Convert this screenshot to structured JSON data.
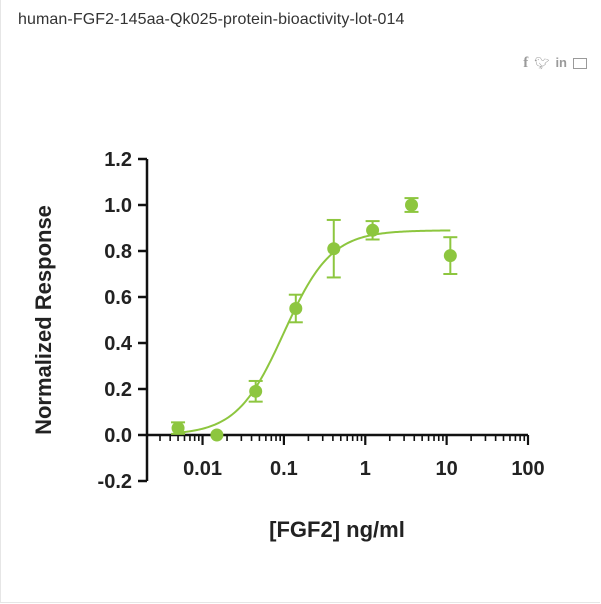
{
  "page": {
    "title": "human-FGF2-145aa-Qk025-protein-bioactivity-lot-014"
  },
  "share": {
    "facebook_icon": "facebook-icon",
    "twitter_icon": "twitter-icon",
    "linkedin_icon": "linkedin-icon",
    "email_icon": "email-icon",
    "glyph_color": "#9a9a9a"
  },
  "chart_data": {
    "type": "scatter",
    "xlabel": "[FGF2] ng/ml",
    "ylabel": "Normalized Response",
    "x_scale": "log",
    "xlim": [
      0.003,
      100
    ],
    "ylim": [
      -0.2,
      1.2
    ],
    "y_ticks": [
      -0.2,
      0.0,
      0.2,
      0.4,
      0.6,
      0.8,
      1.0,
      1.2
    ],
    "y_tick_labels": [
      "-0.2",
      "0.0",
      "0.2",
      "0.4",
      "0.6",
      "0.8",
      "1.0",
      "1.2"
    ],
    "x_ticks": [
      0.01,
      0.1,
      1,
      10,
      100
    ],
    "x_tick_labels": [
      "0.01",
      "0.1",
      "1",
      "10",
      "100"
    ],
    "grid": false,
    "color": "#8dc63f",
    "series": [
      {
        "points": [
          {
            "x": 0.005,
            "y": 0.03,
            "err": 0.025
          },
          {
            "x": 0.015,
            "y": 0.0,
            "err": 0.0
          },
          {
            "x": 0.045,
            "y": 0.19,
            "err": 0.045
          },
          {
            "x": 0.14,
            "y": 0.55,
            "err": 0.06
          },
          {
            "x": 0.41,
            "y": 0.81,
            "err": 0.125
          },
          {
            "x": 1.23,
            "y": 0.89,
            "err": 0.04
          },
          {
            "x": 3.7,
            "y": 1.0,
            "err": 0.03
          },
          {
            "x": 11.1,
            "y": 0.78,
            "err": 0.08
          }
        ],
        "fit": {
          "model": "4PL",
          "bottom": 0.0,
          "top": 0.89,
          "ec50": 0.1,
          "hill": 1.5,
          "x_range": [
            0.005,
            11.1
          ]
        }
      }
    ]
  }
}
